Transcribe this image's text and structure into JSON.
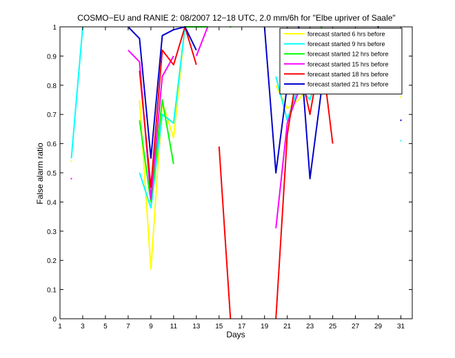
{
  "chart_data": {
    "type": "line",
    "title": "COSMO−EU and RANIE 2: 08/2007 12−18 UTC, 2.0 mm/6h for \"Elbe upriver of Saale\"",
    "xlabel": "Days",
    "ylabel": "False alarm ratio",
    "xlim": [
      1,
      32
    ],
    "ylim": [
      0,
      1
    ],
    "xticks": [
      1,
      3,
      5,
      7,
      9,
      11,
      13,
      15,
      17,
      19,
      21,
      23,
      25,
      27,
      29,
      31
    ],
    "xtick_labels": [
      "1",
      "3",
      "5",
      "7",
      "9",
      "11",
      "13",
      "15",
      "17",
      "19",
      "21",
      "23",
      "25",
      "27",
      "29",
      "31"
    ],
    "yticks": [
      0,
      0.1,
      0.2,
      0.3,
      0.4,
      0.5,
      0.6,
      0.7,
      0.8,
      0.9,
      1
    ],
    "ytick_labels": [
      "0",
      "0.1",
      "0.2",
      "0.3",
      "0.4",
      "0.5",
      "0.6",
      "0.7",
      "0.8",
      "0.9",
      "1"
    ],
    "grid": false,
    "legend_position": "top-right",
    "series": [
      {
        "name": "forecast started 6 hrs before",
        "color": "#ffff00",
        "segments": [
          [
            [
              2,
              0.54
            ]
          ],
          [
            [
              8,
              0.75
            ],
            [
              9,
              0.17
            ],
            [
              10,
              0.74
            ],
            [
              11,
              0.62
            ],
            [
              12,
              1.0
            ]
          ],
          [
            [
              20,
              0.8
            ],
            [
              21,
              0.72
            ],
            [
              22,
              0.75
            ],
            [
              23,
              0.8
            ]
          ],
          [
            [
              31,
              0.76
            ]
          ]
        ]
      },
      {
        "name": "forecast started 9 hrs before",
        "color": "#00ffff",
        "segments": [
          [
            [
              2,
              0.55
            ],
            [
              3,
              1.0
            ]
          ],
          [
            [
              8,
              0.5
            ],
            [
              9,
              0.38
            ],
            [
              10,
              0.7
            ],
            [
              11,
              0.67
            ],
            [
              12,
              1.0
            ],
            [
              13,
              1.0
            ],
            [
              14,
              1.0
            ]
          ],
          [
            [
              20,
              0.83
            ],
            [
              21,
              0.68
            ],
            [
              22,
              0.8
            ],
            [
              23,
              0.75
            ],
            [
              24,
              0.88
            ]
          ],
          [
            [
              31,
              0.61
            ]
          ]
        ]
      },
      {
        "name": "forecast started 12 hrs before",
        "color": "#00ff00",
        "segments": [
          [
            [
              8,
              0.68
            ],
            [
              9,
              0.4
            ],
            [
              10,
              0.75
            ],
            [
              11,
              0.53
            ]
          ],
          [
            [
              12,
              1.0
            ],
            [
              13,
              1.0
            ],
            [
              14,
              1.0
            ]
          ],
          [
            [
              16,
              1.0
            ]
          ],
          [
            [
              21,
              0.83
            ],
            [
              22,
              0.9
            ],
            [
              23,
              0.83
            ],
            [
              24,
              1.0
            ],
            [
              25,
              0.9
            ]
          ]
        ]
      },
      {
        "name": "forecast started 15 hrs before",
        "color": "#ff00ff",
        "segments": [
          [
            [
              2,
              0.48
            ]
          ],
          [
            [
              7,
              0.92
            ],
            [
              8,
              0.88
            ],
            [
              9,
              0.41
            ],
            [
              10,
              0.83
            ],
            [
              11,
              0.9
            ]
          ],
          [
            [
              13,
              0.9
            ],
            [
              14,
              1.0
            ]
          ],
          [
            [
              20,
              0.31
            ],
            [
              21,
              0.67
            ],
            [
              22,
              0.78
            ],
            [
              23,
              0.83
            ],
            [
              24,
              0.92
            ],
            [
              25,
              0.83
            ]
          ],
          [
            [
              31,
              0.85
            ]
          ]
        ]
      },
      {
        "name": "forecast started 18 hrs before",
        "color": "#ff0000",
        "segments": [
          [
            [
              8,
              0.85
            ],
            [
              9,
              0.45
            ],
            [
              10,
              0.92
            ],
            [
              11,
              0.87
            ],
            [
              12,
              1.0
            ],
            [
              13,
              0.87
            ]
          ],
          [
            [
              15,
              0.59
            ],
            [
              16,
              0.0
            ]
          ],
          [
            [
              20,
              0.0
            ],
            [
              21,
              0.63
            ],
            [
              22,
              0.88
            ],
            [
              23,
              0.7
            ],
            [
              24,
              0.92
            ],
            [
              25,
              0.6
            ]
          ],
          [
            [
              31,
              0.82
            ]
          ]
        ]
      },
      {
        "name": "forecast started 21 hrs before",
        "color": "#0000cc",
        "segments": [
          [
            [
              7,
              1.0
            ],
            [
              8,
              0.96
            ],
            [
              9,
              0.55
            ],
            [
              10,
              0.97
            ],
            [
              11,
              0.99
            ],
            [
              12,
              1.0
            ],
            [
              13,
              0.92
            ]
          ],
          [
            [
              19,
              1.0
            ],
            [
              20,
              0.5
            ],
            [
              21,
              0.8
            ],
            [
              22,
              1.0
            ],
            [
              23,
              0.48
            ],
            [
              24,
              0.78
            ]
          ],
          [
            [
              29,
              1.0
            ]
          ],
          [
            [
              31,
              0.68
            ]
          ]
        ]
      }
    ]
  }
}
